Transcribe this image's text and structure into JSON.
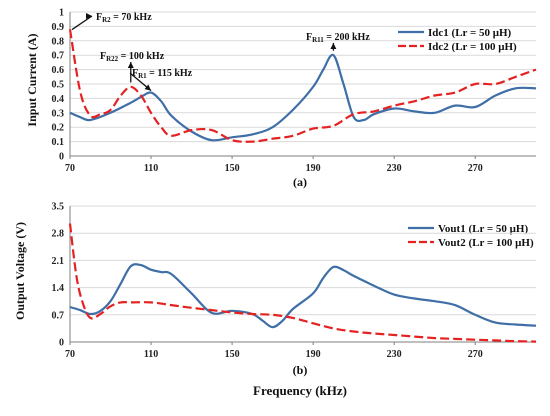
{
  "xlabel": "Frequency (kHz)",
  "colors": {
    "blue": "#3f6fa6",
    "red": "#e52222"
  },
  "chart_data": [
    {
      "type": "line",
      "panel_label": "(a)",
      "ylabel": "Input Current (A)",
      "xlim": [
        70,
        300
      ],
      "ylim": [
        0,
        1
      ],
      "xticks": [
        70,
        110,
        150,
        190,
        230,
        270
      ],
      "yticks": [
        0,
        0.1,
        0.2,
        0.3,
        0.4,
        0.5,
        0.6,
        0.7,
        0.8,
        0.9,
        1
      ],
      "ytick_labels": [
        "0",
        "0.1",
        "0.2",
        "0.3",
        "0.4",
        "0.5",
        "0.6",
        "0.7",
        "0.8",
        "0.9",
        "1"
      ],
      "grid": "horizontal",
      "legend": "top-right",
      "series": [
        {
          "name": "Idc1 (Lr = 50 μH)",
          "color": "#3f6fa6",
          "dash": "solid",
          "x": [
            70,
            75,
            80,
            90,
            100,
            105,
            110,
            115,
            120,
            130,
            140,
            150,
            160,
            170,
            180,
            190,
            195,
            200,
            205,
            210,
            215,
            220,
            230,
            240,
            250,
            260,
            270,
            280,
            290,
            300
          ],
          "y": [
            0.3,
            0.27,
            0.25,
            0.3,
            0.37,
            0.41,
            0.44,
            0.38,
            0.28,
            0.17,
            0.11,
            0.13,
            0.15,
            0.2,
            0.32,
            0.48,
            0.6,
            0.7,
            0.5,
            0.27,
            0.25,
            0.29,
            0.33,
            0.31,
            0.3,
            0.35,
            0.34,
            0.42,
            0.47,
            0.47
          ]
        },
        {
          "name": "Idc2 (Lr = 100 μH)",
          "color": "#e52222",
          "dash": "dashed",
          "x": [
            70,
            75,
            80,
            85,
            90,
            95,
            100,
            105,
            110,
            115,
            120,
            130,
            140,
            150,
            160,
            170,
            180,
            190,
            200,
            210,
            220,
            230,
            240,
            250,
            260,
            270,
            280,
            290,
            300
          ],
          "y": [
            0.88,
            0.45,
            0.28,
            0.29,
            0.32,
            0.42,
            0.48,
            0.42,
            0.3,
            0.2,
            0.14,
            0.18,
            0.18,
            0.11,
            0.1,
            0.12,
            0.14,
            0.19,
            0.21,
            0.29,
            0.31,
            0.35,
            0.38,
            0.42,
            0.44,
            0.5,
            0.5,
            0.55,
            0.6
          ]
        }
      ],
      "annotations": [
        {
          "text": "F",
          "sub": "R2",
          "rest": " = 70 kHz",
          "x": 70,
          "y": 0.85
        },
        {
          "text": "F",
          "sub": "R22",
          "rest": " = 100 kHz",
          "x": 100,
          "y": 0.49
        },
        {
          "text": "F",
          "sub": "R1",
          "rest": " = 115 kHz",
          "x": 110,
          "y": 0.44
        },
        {
          "text": "F",
          "sub": "R11",
          "rest": " = 200 kHz",
          "x": 200,
          "y": 0.71
        }
      ]
    },
    {
      "type": "line",
      "panel_label": "(b)",
      "ylabel": "Output Voltage (V)",
      "xlim": [
        70,
        300
      ],
      "ylim": [
        0,
        3.5
      ],
      "xticks": [
        70,
        110,
        150,
        190,
        230,
        270
      ],
      "yticks": [
        0,
        0.7,
        1.4,
        2.1,
        2.8,
        3.5
      ],
      "ytick_labels": [
        "0",
        "0.7",
        "1.4",
        "2.1",
        "2.8",
        "3.5"
      ],
      "grid": "horizontal",
      "legend": "top-right",
      "series": [
        {
          "name": "Vout1 (Lr = 50 μH)",
          "color": "#3f6fa6",
          "dash": "solid",
          "x": [
            70,
            75,
            80,
            85,
            90,
            95,
            100,
            105,
            110,
            115,
            120,
            130,
            140,
            150,
            160,
            165,
            170,
            175,
            180,
            190,
            195,
            200,
            205,
            210,
            220,
            230,
            240,
            250,
            260,
            270,
            280,
            290,
            300
          ],
          "y": [
            0.9,
            0.82,
            0.72,
            0.8,
            1.05,
            1.5,
            1.95,
            1.98,
            1.86,
            1.8,
            1.75,
            1.25,
            0.75,
            0.8,
            0.72,
            0.55,
            0.38,
            0.55,
            0.85,
            1.25,
            1.65,
            1.93,
            1.85,
            1.7,
            1.45,
            1.22,
            1.12,
            1.05,
            0.95,
            0.7,
            0.5,
            0.45,
            0.42
          ]
        },
        {
          "name": "Vout2 (Lr = 100 μH)",
          "color": "#e52222",
          "dash": "dashed",
          "x": [
            70,
            73,
            76,
            80,
            85,
            90,
            95,
            100,
            110,
            120,
            130,
            140,
            150,
            160,
            170,
            180,
            190,
            200,
            210,
            220,
            230,
            240,
            250,
            260,
            270,
            280,
            290,
            300
          ],
          "y": [
            3.05,
            1.75,
            1.05,
            0.62,
            0.72,
            0.92,
            1.02,
            1.02,
            1.02,
            0.95,
            0.88,
            0.82,
            0.76,
            0.72,
            0.7,
            0.62,
            0.48,
            0.35,
            0.27,
            0.22,
            0.18,
            0.14,
            0.1,
            0.08,
            0.06,
            0.04,
            0.02,
            0.01
          ]
        }
      ]
    }
  ]
}
